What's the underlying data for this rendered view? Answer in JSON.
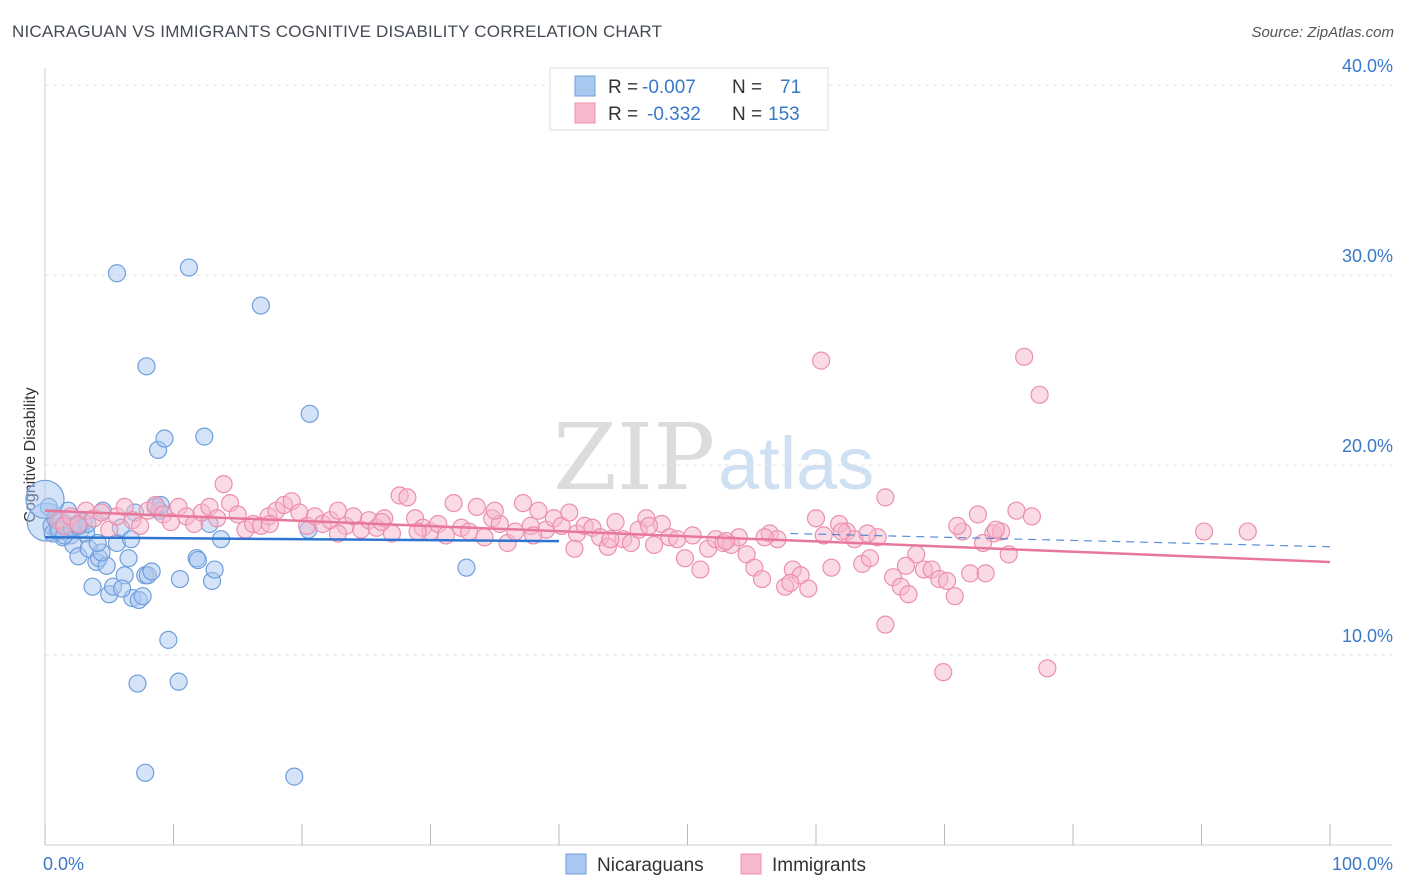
{
  "title": "NICARAGUAN VS IMMIGRANTS COGNITIVE DISABILITY CORRELATION CHART",
  "source": "Source: ZipAtlas.com",
  "watermark": {
    "zip": "ZIP",
    "atlas": "atlas"
  },
  "colors": {
    "blue_fill": "#a9c8ef",
    "blue_stroke": "#6f9fdc",
    "blue_line": "#2f74d0",
    "pink_fill": "#f6b8cc",
    "pink_stroke": "#ec8fae",
    "pink_line": "#e8779c",
    "tick_text": "#3a78c9",
    "grid": "#e3e3e3"
  },
  "legend": {
    "rows": [
      {
        "r_label": "R =",
        "r_value": "-0.007",
        "n_label": "N =",
        "n_value": "71"
      },
      {
        "r_label": "R =",
        "r_value": "-0.332",
        "n_label": "N =",
        "n_value": "153"
      }
    ]
  },
  "bottom_legend": [
    "Nicaraguans",
    "Immigrants"
  ],
  "chart_data": {
    "type": "scatter",
    "ylabel": "Cognitive Disability",
    "xlim": [
      0,
      100
    ],
    "ylim": [
      0,
      40.8
    ],
    "y_ticks": [
      {
        "value": 10,
        "label": "10.0%"
      },
      {
        "value": 20,
        "label": "20.0%"
      },
      {
        "value": 30,
        "label": "30.0%"
      },
      {
        "value": 40,
        "label": "40.0%"
      }
    ],
    "x_tick_labels": {
      "min": "0.0%",
      "max": "100.0%"
    },
    "series": [
      {
        "name": "Nicaraguans",
        "color": "blue",
        "trend": {
          "x0": 0,
          "y0": 16.2,
          "x1": 40,
          "y1": 16.0
        },
        "points": [
          [
            0.1,
            17.0
          ],
          [
            0.3,
            17.8
          ],
          [
            0.5,
            16.8
          ],
          [
            0.8,
            17.2
          ],
          [
            1.0,
            16.5
          ],
          [
            1.2,
            17.1
          ],
          [
            1.4,
            16.2
          ],
          [
            1.6,
            16.9
          ],
          [
            1.8,
            17.6
          ],
          [
            2.0,
            16.3
          ],
          [
            2.2,
            15.8
          ],
          [
            2.4,
            16.8
          ],
          [
            2.6,
            15.2
          ],
          [
            2.8,
            16.6
          ],
          [
            3.0,
            17.0
          ],
          [
            3.2,
            16.4
          ],
          [
            3.4,
            15.6
          ],
          [
            3.7,
            13.6
          ],
          [
            4.0,
            14.9
          ],
          [
            4.2,
            15.1
          ],
          [
            4.5,
            17.6
          ],
          [
            4.8,
            14.7
          ],
          [
            5.0,
            13.2
          ],
          [
            5.3,
            13.6
          ],
          [
            5.6,
            15.9
          ],
          [
            5.9,
            16.7
          ],
          [
            6.2,
            14.2
          ],
          [
            6.5,
            15.1
          ],
          [
            6.8,
            13.0
          ],
          [
            7.0,
            17.5
          ],
          [
            7.3,
            12.9
          ],
          [
            7.6,
            13.1
          ],
          [
            7.8,
            14.2
          ],
          [
            8.0,
            14.2
          ],
          [
            8.3,
            14.4
          ],
          [
            8.6,
            17.8
          ],
          [
            8.9,
            17.6
          ],
          [
            5.6,
            30.1
          ],
          [
            7.9,
            25.2
          ],
          [
            8.8,
            20.8
          ],
          [
            9.3,
            21.4
          ],
          [
            9.6,
            10.8
          ],
          [
            10.5,
            14.0
          ],
          [
            11.2,
            30.4
          ],
          [
            11.8,
            15.1
          ],
          [
            12.4,
            21.5
          ],
          [
            12.8,
            16.9
          ],
          [
            13.0,
            13.9
          ],
          [
            13.2,
            14.5
          ],
          [
            13.7,
            16.1
          ],
          [
            16.8,
            28.4
          ],
          [
            20.6,
            22.7
          ],
          [
            20.5,
            16.6
          ],
          [
            32.8,
            14.6
          ],
          [
            7.2,
            8.5
          ],
          [
            10.4,
            8.6
          ],
          [
            7.8,
            3.8
          ],
          [
            19.4,
            3.6
          ],
          [
            0.0,
            18.2
          ],
          [
            0.6,
            16.4
          ],
          [
            1.1,
            16.6
          ],
          [
            1.5,
            16.3
          ],
          [
            2.1,
            16.7
          ],
          [
            3.3,
            16.9
          ],
          [
            4.4,
            15.4
          ],
          [
            6.0,
            13.5
          ],
          [
            6.7,
            16.1
          ],
          [
            9.0,
            17.9
          ],
          [
            11.9,
            15.0
          ],
          [
            4.1,
            15.9
          ],
          [
            2.6,
            16.8
          ]
        ]
      },
      {
        "name": "Immigrants",
        "color": "pink",
        "trend": {
          "x0": 0,
          "y0": 17.6,
          "x1": 100,
          "y1": 14.9
        },
        "trend_dashed": {
          "x0": 58,
          "y0": 16.4,
          "x1": 100,
          "y1": 15.7
        },
        "points": [
          [
            1.0,
            17.1
          ],
          [
            1.5,
            16.8
          ],
          [
            2.0,
            17.3
          ],
          [
            2.6,
            16.9
          ],
          [
            3.2,
            17.6
          ],
          [
            3.8,
            17.2
          ],
          [
            4.4,
            17.5
          ],
          [
            5.0,
            16.6
          ],
          [
            5.6,
            17.3
          ],
          [
            6.2,
            17.8
          ],
          [
            6.8,
            17.1
          ],
          [
            7.4,
            16.8
          ],
          [
            8.0,
            17.6
          ],
          [
            8.6,
            17.9
          ],
          [
            9.2,
            17.4
          ],
          [
            9.8,
            17.0
          ],
          [
            10.4,
            17.8
          ],
          [
            11.0,
            17.3
          ],
          [
            11.6,
            16.9
          ],
          [
            12.2,
            17.5
          ],
          [
            12.8,
            17.8
          ],
          [
            13.4,
            17.2
          ],
          [
            13.9,
            19.0
          ],
          [
            14.4,
            18.0
          ],
          [
            15.0,
            17.4
          ],
          [
            15.6,
            16.6
          ],
          [
            16.2,
            16.9
          ],
          [
            16.8,
            16.8
          ],
          [
            17.4,
            17.3
          ],
          [
            18.0,
            17.6
          ],
          [
            18.6,
            17.9
          ],
          [
            19.2,
            18.1
          ],
          [
            19.8,
            17.5
          ],
          [
            20.4,
            16.8
          ],
          [
            21.0,
            17.3
          ],
          [
            21.6,
            16.9
          ],
          [
            22.2,
            17.1
          ],
          [
            22.8,
            17.6
          ],
          [
            23.4,
            16.8
          ],
          [
            24.0,
            17.3
          ],
          [
            24.6,
            16.6
          ],
          [
            25.2,
            17.1
          ],
          [
            25.8,
            16.7
          ],
          [
            26.4,
            17.2
          ],
          [
            27.0,
            16.4
          ],
          [
            27.6,
            18.4
          ],
          [
            28.2,
            18.3
          ],
          [
            28.8,
            17.2
          ],
          [
            29.4,
            16.7
          ],
          [
            30.0,
            16.5
          ],
          [
            30.6,
            16.9
          ],
          [
            31.2,
            16.3
          ],
          [
            31.8,
            18.0
          ],
          [
            32.4,
            16.7
          ],
          [
            33.0,
            16.5
          ],
          [
            33.6,
            17.8
          ],
          [
            34.2,
            16.2
          ],
          [
            34.8,
            17.2
          ],
          [
            35.4,
            16.9
          ],
          [
            36.0,
            15.9
          ],
          [
            36.6,
            16.5
          ],
          [
            37.2,
            18.0
          ],
          [
            37.8,
            16.8
          ],
          [
            38.4,
            17.6
          ],
          [
            39.0,
            16.6
          ],
          [
            39.6,
            17.2
          ],
          [
            40.2,
            16.8
          ],
          [
            40.8,
            17.5
          ],
          [
            41.4,
            16.4
          ],
          [
            42.0,
            16.8
          ],
          [
            42.6,
            16.7
          ],
          [
            43.2,
            16.2
          ],
          [
            43.8,
            15.7
          ],
          [
            44.4,
            17.0
          ],
          [
            45.0,
            16.1
          ],
          [
            45.6,
            15.9
          ],
          [
            46.2,
            16.6
          ],
          [
            46.8,
            17.2
          ],
          [
            47.4,
            15.8
          ],
          [
            48.0,
            16.9
          ],
          [
            48.6,
            16.2
          ],
          [
            49.2,
            16.1
          ],
          [
            49.8,
            15.1
          ],
          [
            50.4,
            16.3
          ],
          [
            51.0,
            14.5
          ],
          [
            51.6,
            15.6
          ],
          [
            52.2,
            16.1
          ],
          [
            52.8,
            15.9
          ],
          [
            53.4,
            15.8
          ],
          [
            54.0,
            16.2
          ],
          [
            54.6,
            15.3
          ],
          [
            55.2,
            14.6
          ],
          [
            55.8,
            14.0
          ],
          [
            56.4,
            16.4
          ],
          [
            57.0,
            16.1
          ],
          [
            57.6,
            13.6
          ],
          [
            58.2,
            14.5
          ],
          [
            58.8,
            14.2
          ],
          [
            59.4,
            13.5
          ],
          [
            60.0,
            17.2
          ],
          [
            60.6,
            16.3
          ],
          [
            61.2,
            14.6
          ],
          [
            61.8,
            16.9
          ],
          [
            62.4,
            16.5
          ],
          [
            63.0,
            16.1
          ],
          [
            63.6,
            14.8
          ],
          [
            64.2,
            15.1
          ],
          [
            64.8,
            16.2
          ],
          [
            65.4,
            11.6
          ],
          [
            66.0,
            14.1
          ],
          [
            66.6,
            13.6
          ],
          [
            67.2,
            13.2
          ],
          [
            67.8,
            15.3
          ],
          [
            68.4,
            14.5
          ],
          [
            69.0,
            14.5
          ],
          [
            69.6,
            14.0
          ],
          [
            70.2,
            13.9
          ],
          [
            70.8,
            13.1
          ],
          [
            71.4,
            16.5
          ],
          [
            72.0,
            14.3
          ],
          [
            72.6,
            17.4
          ],
          [
            73.2,
            14.3
          ],
          [
            73.8,
            16.4
          ],
          [
            74.4,
            16.5
          ],
          [
            75.0,
            15.3
          ],
          [
            75.6,
            17.6
          ],
          [
            76.2,
            25.7
          ],
          [
            76.8,
            17.3
          ],
          [
            77.4,
            23.7
          ],
          [
            78.0,
            9.3
          ],
          [
            60.4,
            25.5
          ],
          [
            65.4,
            18.3
          ],
          [
            69.9,
            9.1
          ],
          [
            90.2,
            16.5
          ],
          [
            93.6,
            16.5
          ],
          [
            17.5,
            16.9
          ],
          [
            22.8,
            16.4
          ],
          [
            26.2,
            17.0
          ],
          [
            29.0,
            16.5
          ],
          [
            35.0,
            17.6
          ],
          [
            38.0,
            16.3
          ],
          [
            41.2,
            15.6
          ],
          [
            44.0,
            16.1
          ],
          [
            47.0,
            16.8
          ],
          [
            53.0,
            16.0
          ],
          [
            56.0,
            16.2
          ],
          [
            58.0,
            13.8
          ],
          [
            62.0,
            16.5
          ],
          [
            64.0,
            16.4
          ],
          [
            67.0,
            14.7
          ],
          [
            71.0,
            16.8
          ],
          [
            73.0,
            15.9
          ],
          [
            74.0,
            16.6
          ]
        ]
      }
    ]
  }
}
